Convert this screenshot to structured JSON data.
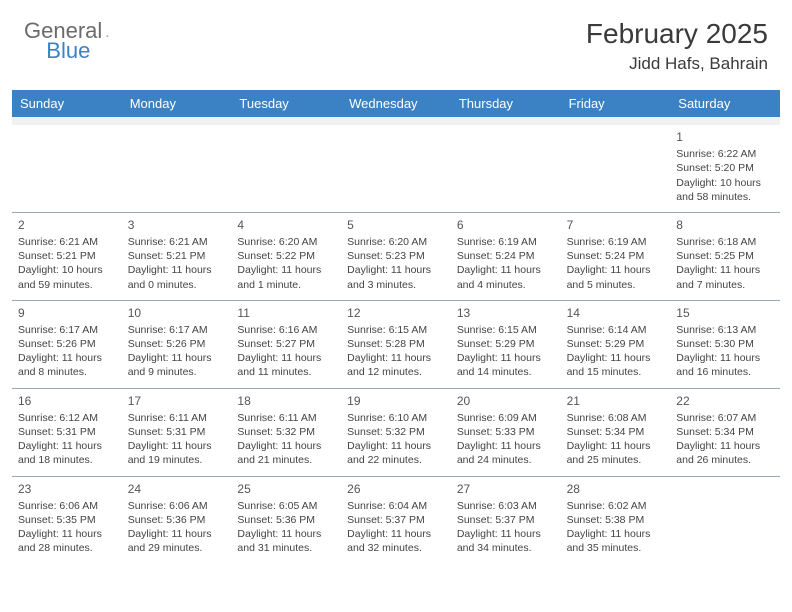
{
  "logo": {
    "text1": "General",
    "text2": "Blue"
  },
  "title": "February 2025",
  "location": "Jidd Hafs, Bahrain",
  "day_headers": [
    "Sunday",
    "Monday",
    "Tuesday",
    "Wednesday",
    "Thursday",
    "Friday",
    "Saturday"
  ],
  "colors": {
    "header_bg": "#3b82c4",
    "header_text": "#ffffff",
    "border": "#9aa7b5",
    "spacer": "#f1f1f1",
    "text": "#444444",
    "logo_gray": "#6b6b6b",
    "logo_blue": "#3b82c4"
  },
  "layout": {
    "columns": 7,
    "rows": 5,
    "first_day_column": 6,
    "days_in_month": 28,
    "cell_fontsize": 10.5,
    "header_fontsize": 13,
    "title_fontsize": 28,
    "location_fontsize": 17
  },
  "days": [
    {
      "n": 1,
      "sunrise": "6:22 AM",
      "sunset": "5:20 PM",
      "daylight": "10 hours and 58 minutes."
    },
    {
      "n": 2,
      "sunrise": "6:21 AM",
      "sunset": "5:21 PM",
      "daylight": "10 hours and 59 minutes."
    },
    {
      "n": 3,
      "sunrise": "6:21 AM",
      "sunset": "5:21 PM",
      "daylight": "11 hours and 0 minutes."
    },
    {
      "n": 4,
      "sunrise": "6:20 AM",
      "sunset": "5:22 PM",
      "daylight": "11 hours and 1 minute."
    },
    {
      "n": 5,
      "sunrise": "6:20 AM",
      "sunset": "5:23 PM",
      "daylight": "11 hours and 3 minutes."
    },
    {
      "n": 6,
      "sunrise": "6:19 AM",
      "sunset": "5:24 PM",
      "daylight": "11 hours and 4 minutes."
    },
    {
      "n": 7,
      "sunrise": "6:19 AM",
      "sunset": "5:24 PM",
      "daylight": "11 hours and 5 minutes."
    },
    {
      "n": 8,
      "sunrise": "6:18 AM",
      "sunset": "5:25 PM",
      "daylight": "11 hours and 7 minutes."
    },
    {
      "n": 9,
      "sunrise": "6:17 AM",
      "sunset": "5:26 PM",
      "daylight": "11 hours and 8 minutes."
    },
    {
      "n": 10,
      "sunrise": "6:17 AM",
      "sunset": "5:26 PM",
      "daylight": "11 hours and 9 minutes."
    },
    {
      "n": 11,
      "sunrise": "6:16 AM",
      "sunset": "5:27 PM",
      "daylight": "11 hours and 11 minutes."
    },
    {
      "n": 12,
      "sunrise": "6:15 AM",
      "sunset": "5:28 PM",
      "daylight": "11 hours and 12 minutes."
    },
    {
      "n": 13,
      "sunrise": "6:15 AM",
      "sunset": "5:29 PM",
      "daylight": "11 hours and 14 minutes."
    },
    {
      "n": 14,
      "sunrise": "6:14 AM",
      "sunset": "5:29 PM",
      "daylight": "11 hours and 15 minutes."
    },
    {
      "n": 15,
      "sunrise": "6:13 AM",
      "sunset": "5:30 PM",
      "daylight": "11 hours and 16 minutes."
    },
    {
      "n": 16,
      "sunrise": "6:12 AM",
      "sunset": "5:31 PM",
      "daylight": "11 hours and 18 minutes."
    },
    {
      "n": 17,
      "sunrise": "6:11 AM",
      "sunset": "5:31 PM",
      "daylight": "11 hours and 19 minutes."
    },
    {
      "n": 18,
      "sunrise": "6:11 AM",
      "sunset": "5:32 PM",
      "daylight": "11 hours and 21 minutes."
    },
    {
      "n": 19,
      "sunrise": "6:10 AM",
      "sunset": "5:32 PM",
      "daylight": "11 hours and 22 minutes."
    },
    {
      "n": 20,
      "sunrise": "6:09 AM",
      "sunset": "5:33 PM",
      "daylight": "11 hours and 24 minutes."
    },
    {
      "n": 21,
      "sunrise": "6:08 AM",
      "sunset": "5:34 PM",
      "daylight": "11 hours and 25 minutes."
    },
    {
      "n": 22,
      "sunrise": "6:07 AM",
      "sunset": "5:34 PM",
      "daylight": "11 hours and 26 minutes."
    },
    {
      "n": 23,
      "sunrise": "6:06 AM",
      "sunset": "5:35 PM",
      "daylight": "11 hours and 28 minutes."
    },
    {
      "n": 24,
      "sunrise": "6:06 AM",
      "sunset": "5:36 PM",
      "daylight": "11 hours and 29 minutes."
    },
    {
      "n": 25,
      "sunrise": "6:05 AM",
      "sunset": "5:36 PM",
      "daylight": "11 hours and 31 minutes."
    },
    {
      "n": 26,
      "sunrise": "6:04 AM",
      "sunset": "5:37 PM",
      "daylight": "11 hours and 32 minutes."
    },
    {
      "n": 27,
      "sunrise": "6:03 AM",
      "sunset": "5:37 PM",
      "daylight": "11 hours and 34 minutes."
    },
    {
      "n": 28,
      "sunrise": "6:02 AM",
      "sunset": "5:38 PM",
      "daylight": "11 hours and 35 minutes."
    }
  ]
}
